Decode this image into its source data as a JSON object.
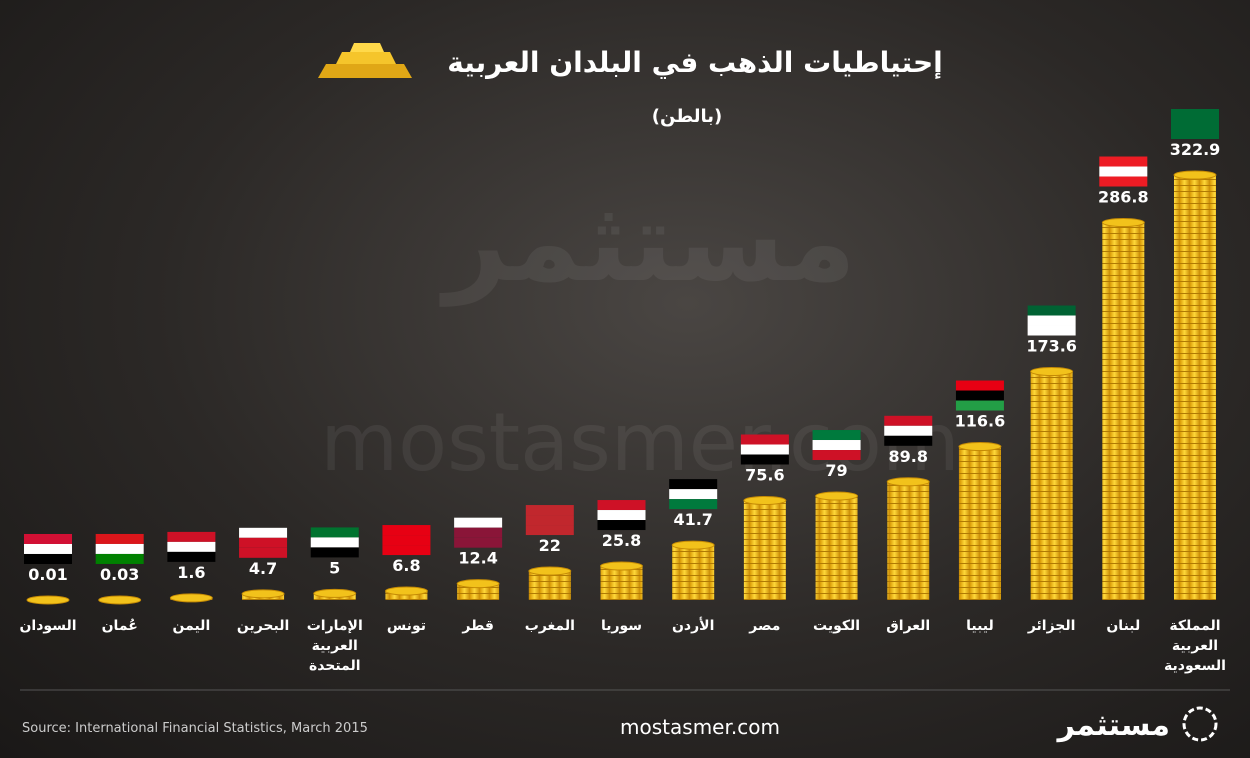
{
  "chart_data": {
    "type": "bar",
    "title": "إحتياطيات الذهب في البلدان العربية",
    "subtitle": "(بالطن)",
    "categories": [
      "السودان",
      "عُمان",
      "اليمن",
      "البحرين",
      "الإمارات العربية المتحدة",
      "تونس",
      "قطر",
      "المغرب",
      "سوريا",
      "الأردن",
      "مصر",
      "الكويت",
      "العراق",
      "ليبيا",
      "الجزائر",
      "لبنان",
      "المملكة العربية السعودية"
    ],
    "values": [
      0.01,
      0.03,
      1.6,
      4.7,
      5,
      6.8,
      12.4,
      22,
      25.8,
      41.7,
      75.6,
      79,
      89.8,
      116.6,
      173.6,
      286.8,
      322.9
    ],
    "color": "#f2c21b"
  },
  "footer": {
    "source": "Source: International Financial Statistics, March 2015",
    "website": "mostasmer.com",
    "logo": "مستثمر"
  }
}
